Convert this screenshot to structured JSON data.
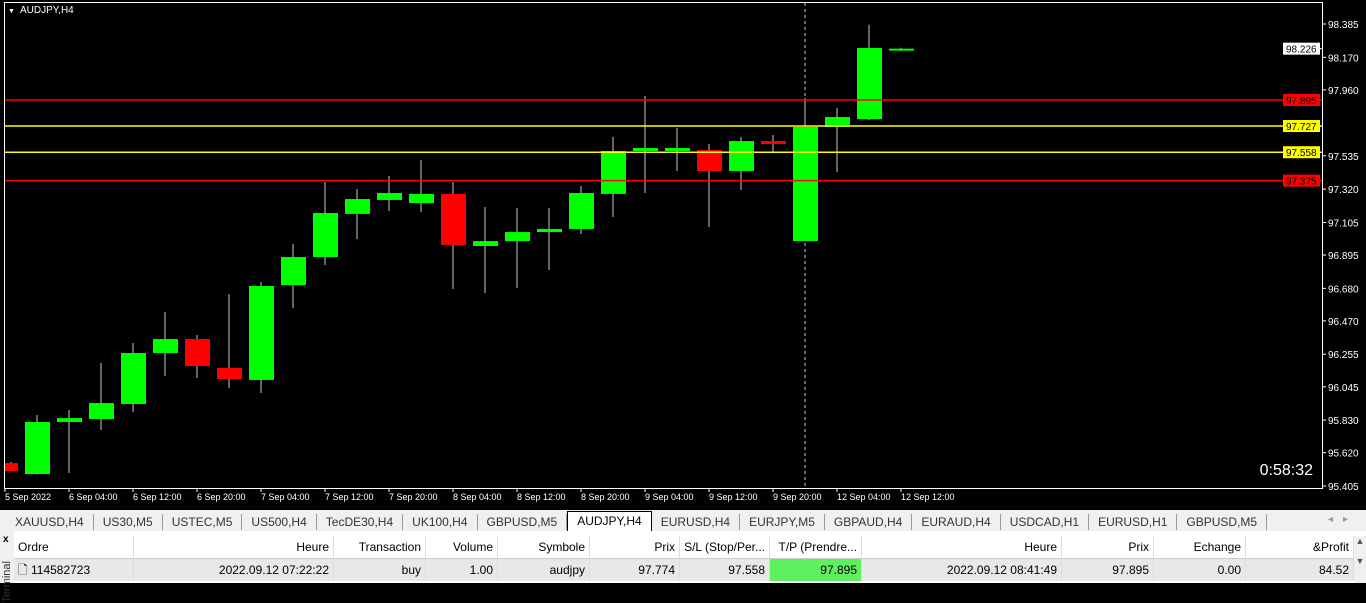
{
  "chart": {
    "title": "AUDJPY,H4",
    "countdown": "0:58:32",
    "price_ticks": [
      "98.385",
      "98.170",
      "97.960",
      "97.535",
      "97.320",
      "97.105",
      "96.895",
      "96.680",
      "96.470",
      "96.255",
      "96.045",
      "95.830",
      "95.620",
      "95.405"
    ],
    "price_range": [
      95.405,
      98.385
    ],
    "current_price": "98.226",
    "levels": [
      {
        "label": "97.895",
        "color": "#ff0000"
      },
      {
        "label": "97.727",
        "color": "#ffff00"
      },
      {
        "label": "97.558",
        "color": "#ffff00"
      },
      {
        "label": "97.375",
        "color": "#ff0000"
      }
    ],
    "time_labels": [
      "5 Sep 2022",
      "6 Sep 04:00",
      "6 Sep 12:00",
      "6 Sep 20:00",
      "7 Sep 04:00",
      "7 Sep 12:00",
      "7 Sep 20:00",
      "8 Sep 04:00",
      "8 Sep 12:00",
      "8 Sep 20:00",
      "9 Sep 04:00",
      "9 Sep 12:00",
      "9 Sep 20:00",
      "12 Sep 04:00",
      "12 Sep 12:00"
    ],
    "colors": {
      "bull": "#00ff00",
      "bear": "#ff0000",
      "background": "#000000",
      "grid_text": "#ffffff"
    },
    "candles": [
      [
        95.553,
        95.502,
        95.56,
        95.5
      ],
      [
        95.482,
        95.818,
        95.863,
        95.48
      ],
      [
        95.818,
        95.843,
        95.895,
        95.489
      ],
      [
        95.837,
        95.94,
        96.198,
        95.766
      ],
      [
        95.934,
        96.263,
        96.327,
        95.882
      ],
      [
        96.263,
        96.353,
        96.527,
        96.115
      ],
      [
        96.353,
        96.179,
        96.379,
        96.102
      ],
      [
        96.166,
        96.095,
        96.643,
        96.037
      ],
      [
        96.089,
        96.695,
        96.721,
        96.005
      ],
      [
        96.701,
        96.882,
        96.966,
        96.553
      ],
      [
        96.882,
        97.166,
        97.366,
        96.83
      ],
      [
        97.16,
        97.256,
        97.321,
        96.998
      ],
      [
        97.25,
        97.295,
        97.405,
        97.179
      ],
      [
        97.23,
        97.289,
        97.508,
        97.172
      ],
      [
        97.289,
        96.96,
        97.366,
        96.676
      ],
      [
        96.953,
        96.985,
        97.205,
        96.65
      ],
      [
        96.985,
        97.043,
        97.198,
        96.682
      ],
      [
        97.043,
        97.063,
        97.198,
        96.798
      ],
      [
        97.063,
        97.295,
        97.34,
        97.03
      ],
      [
        97.289,
        97.566,
        97.656,
        97.14
      ],
      [
        97.566,
        97.585,
        97.921,
        97.295
      ],
      [
        97.566,
        97.585,
        97.714,
        97.437
      ],
      [
        97.572,
        97.437,
        97.611,
        97.076
      ],
      [
        97.437,
        97.63,
        97.656,
        97.314
      ],
      [
        97.63,
        97.611,
        97.669,
        97.559
      ],
      [
        96.985,
        97.721,
        97.908,
        96.985
      ],
      [
        97.721,
        97.785,
        97.843,
        97.43
      ],
      [
        97.772,
        98.23,
        98.379,
        97.766
      ],
      [
        98.218,
        98.226,
        98.232,
        98.212
      ]
    ]
  },
  "tabs": [
    "XAUUSD,H4",
    "US30,M5",
    "USTEC,M5",
    "US500,H4",
    "TecDE30,H4",
    "UK100,H4",
    "GBPUSD,M5",
    "AUDJPY,H4",
    "EURUSD,H4",
    "EURJPY,M5",
    "GBPAUD,H4",
    "EURAUD,H4",
    "USDCAD,H1",
    "EURUSD,H1",
    "GBPUSD,M5"
  ],
  "active_tab": "AUDJPY,H4",
  "terminal": {
    "side_label": "Terminal",
    "close": "x",
    "headers": [
      "Ordre",
      "Heure",
      "Transaction",
      "Volume",
      "Symbole",
      "Prix",
      "S/L (Stop/Per...",
      "T/P (Prendre...",
      "Heure",
      "Prix",
      "Echange",
      "&Profit"
    ],
    "rows": [
      [
        "114582723",
        "2022.09.12 07:22:22",
        "buy",
        "1.00",
        "audjpy",
        "97.774",
        "97.558",
        "97.895",
        "2022.09.12 08:41:49",
        "97.895",
        "0.00",
        "84.52"
      ]
    ]
  }
}
